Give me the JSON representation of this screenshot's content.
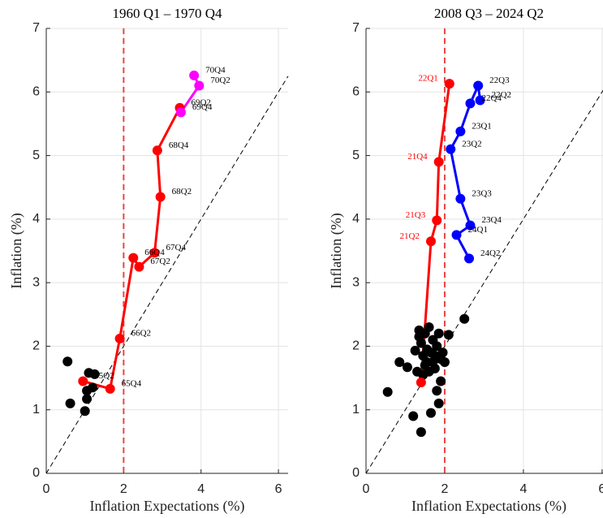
{
  "chart_data": [
    {
      "type": "scatter",
      "title": "1960 Q1 – 1970 Q4",
      "xlabel": "Inflation Expectations (%)",
      "ylabel": "Inflation (%)",
      "xlim": [
        0,
        6.25
      ],
      "ylim": [
        0,
        7
      ],
      "xticks": [
        0,
        2,
        4,
        6
      ],
      "yticks": [
        0,
        1,
        2,
        3,
        4,
        5,
        6,
        7
      ],
      "grid": true,
      "vline": 2,
      "vline_color": "#ee4444",
      "diagonal": true,
      "series": [
        {
          "color": "#000000",
          "line": false,
          "x": [
            0.55,
            0.62,
            1.0,
            1.05,
            1.05,
            1.1,
            1.25,
            1.2
          ],
          "values": [
            1.76,
            1.1,
            0.98,
            1.17,
            1.3,
            1.58,
            1.56,
            1.35
          ]
        },
        {
          "color": "#ff0000",
          "line": true,
          "label_color": "#000000",
          "x": [
            0.95,
            1.65,
            1.9,
            2.25,
            2.4,
            2.8,
            2.95,
            2.87,
            3.45
          ],
          "values": [
            1.45,
            1.33,
            2.12,
            3.39,
            3.25,
            3.47,
            4.35,
            5.08,
            5.75
          ],
          "point_labels": [
            "65Q2",
            "65Q4",
            "66Q2",
            "66Q4",
            "67Q2",
            "67Q4",
            "68Q2",
            "68Q4",
            "69Q2"
          ]
        },
        {
          "color": "#ff00ff",
          "line": true,
          "label_color": "#000000",
          "x": [
            3.48,
            3.95,
            3.82
          ],
          "values": [
            5.68,
            6.1,
            6.26
          ],
          "point_labels": [
            "69Q4",
            "70Q2",
            "70Q4"
          ]
        }
      ]
    },
    {
      "type": "scatter",
      "title": "2008 Q3 – 2024 Q2",
      "xlabel": "Inflation Expectations (%)",
      "ylabel": "Inflation (%)",
      "xlim": [
        0,
        6.25
      ],
      "ylim": [
        0,
        7
      ],
      "xticks": [
        0,
        2,
        4,
        6
      ],
      "yticks": [
        0,
        1,
        2,
        3,
        4,
        5,
        6,
        7
      ],
      "grid": true,
      "vline": 2,
      "vline_color": "#ee4444",
      "diagonal": true,
      "series": [
        {
          "color": "#000000",
          "line": false,
          "x": [
            0.55,
            0.85,
            1.05,
            1.2,
            1.25,
            1.3,
            1.35,
            1.35,
            1.4,
            1.4,
            1.45,
            1.5,
            1.5,
            1.55,
            1.6,
            1.6,
            1.65,
            1.65,
            1.7,
            1.7,
            1.75,
            1.75,
            1.8,
            1.8,
            1.85,
            1.85,
            1.9,
            1.9,
            1.95,
            2.0,
            2.1,
            2.5,
            1.45,
            1.55
          ],
          "values": [
            1.28,
            1.75,
            1.67,
            0.9,
            1.93,
            1.6,
            2.25,
            2.15,
            0.65,
            2.05,
            1.85,
            2.2,
            1.7,
            1.95,
            1.6,
            2.3,
            1.9,
            0.95,
            1.75,
            2.1,
            1.65,
            1.85,
            2.0,
            1.3,
            1.1,
            2.2,
            1.45,
            1.8,
            1.9,
            1.75,
            2.18,
            2.43,
            1.55,
            1.75
          ]
        },
        {
          "color": "#ff0000",
          "line": true,
          "label_color": "#ff0000",
          "label_side": "left",
          "x": [
            1.4,
            1.65,
            1.8,
            1.85,
            2.12
          ],
          "values": [
            1.43,
            3.65,
            3.98,
            4.9,
            6.13
          ],
          "point_labels": [
            null,
            "21Q2",
            "21Q3",
            "21Q4",
            "22Q1"
          ]
        },
        {
          "color": "#0000ff",
          "line": true,
          "label_color": "#000000",
          "x": [
            2.9,
            2.85,
            2.65,
            2.4,
            2.15,
            2.4,
            2.65,
            2.3,
            2.62
          ],
          "values": [
            5.87,
            6.1,
            5.82,
            5.38,
            5.1,
            4.32,
            3.9,
            3.75,
            3.38
          ],
          "point_labels": [
            "22Q2",
            "22Q3",
            "22Q4",
            "23Q1",
            "23Q2",
            "23Q3",
            "23Q4",
            "24Q1",
            "24Q2"
          ]
        }
      ]
    }
  ]
}
